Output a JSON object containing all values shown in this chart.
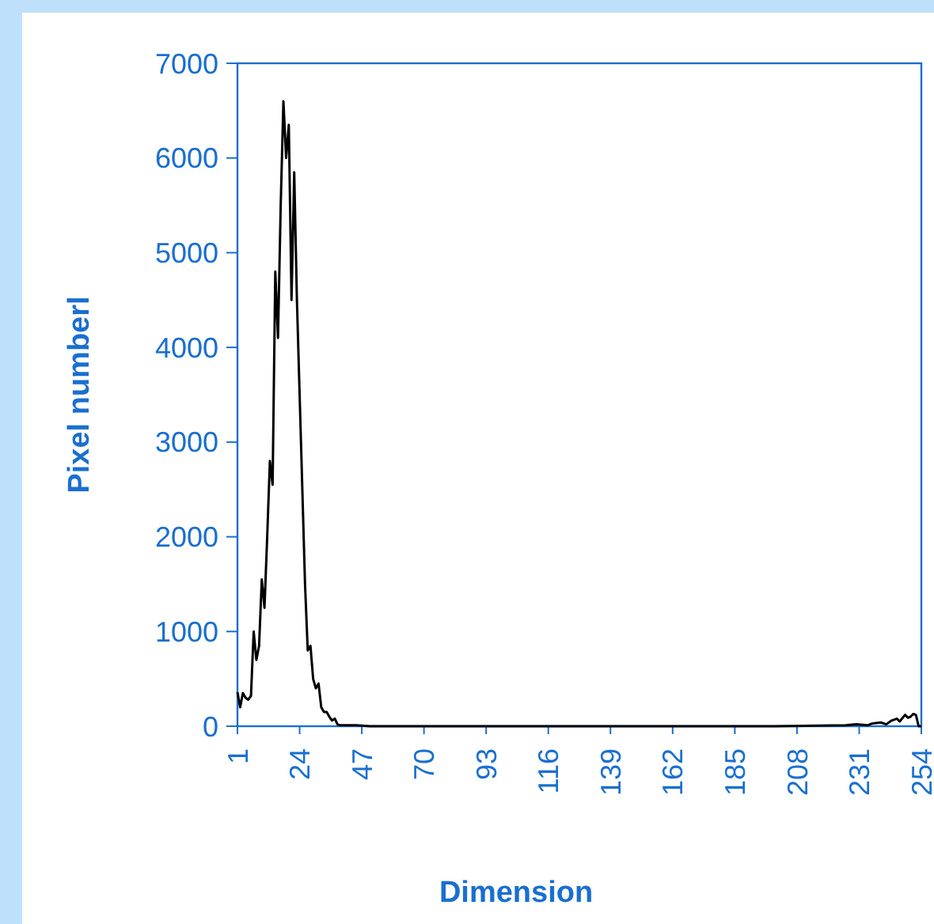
{
  "chart_data": {
    "type": "line",
    "xlabel": "Dimension",
    "ylabel": "Pixel numberl",
    "xlim": [
      1,
      254
    ],
    "xticks": [
      1,
      24,
      47,
      70,
      93,
      116,
      139,
      162,
      185,
      208,
      231,
      254
    ],
    "ylim": [
      0,
      7000
    ],
    "yticks": [
      0,
      1000,
      2000,
      3000,
      4000,
      5000,
      6000,
      7000
    ],
    "grid": false,
    "series": [
      {
        "color": "#000000",
        "x": [
          1,
          2,
          3,
          4,
          5,
          6,
          7,
          8,
          9,
          10,
          11,
          12,
          13,
          14,
          15,
          16,
          17,
          18,
          19,
          20,
          21,
          22,
          23,
          24,
          25,
          26,
          27,
          28,
          29,
          30,
          31,
          32,
          33,
          34,
          35,
          36,
          37,
          38,
          39,
          42,
          45,
          50,
          80,
          120,
          160,
          200,
          226,
          230,
          234,
          236,
          239,
          241,
          243,
          245,
          246,
          248,
          249,
          250,
          251,
          252,
          253,
          254
        ],
        "values": [
          360,
          200,
          350,
          300,
          280,
          320,
          1000,
          700,
          850,
          1550,
          1250,
          2000,
          2800,
          2550,
          4800,
          4100,
          5500,
          6600,
          6000,
          6350,
          4500,
          5850,
          4500,
          3500,
          2500,
          1500,
          800,
          850,
          500,
          400,
          450,
          200,
          150,
          150,
          100,
          60,
          80,
          20,
          10,
          10,
          10,
          0,
          0,
          0,
          0,
          0,
          10,
          20,
          10,
          30,
          40,
          20,
          60,
          80,
          50,
          120,
          90,
          100,
          130,
          120,
          0,
          0
        ]
      }
    ]
  }
}
